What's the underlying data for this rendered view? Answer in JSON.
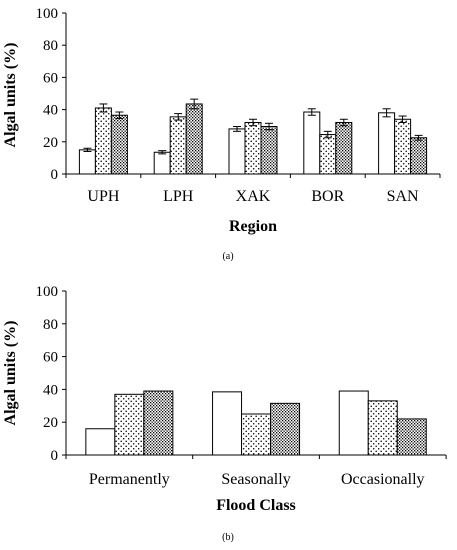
{
  "chart_data": [
    {
      "type": "bar",
      "caption": "(a)",
      "xlabel": "Region",
      "ylabel": "Algal units (%)",
      "ylim": [
        0,
        100
      ],
      "yticks": [
        0,
        20,
        40,
        60,
        80,
        100
      ],
      "categories": [
        "UPH",
        "LPH",
        "XAK",
        "BOR",
        "SAN"
      ],
      "grid": false,
      "legend": "none",
      "series": [
        {
          "pattern": "blank",
          "values": [
            15,
            13.5,
            28,
            38.5,
            38
          ],
          "errors": [
            1,
            1,
            1.5,
            2,
            2.5
          ]
        },
        {
          "pattern": "dotted",
          "values": [
            41,
            35.5,
            32,
            24.5,
            34
          ],
          "errors": [
            2.5,
            2,
            2,
            2,
            2
          ]
        },
        {
          "pattern": "dense-dotted",
          "values": [
            36.5,
            43.5,
            29.5,
            32,
            22.5
          ],
          "errors": [
            2,
            3,
            2,
            2,
            1.5
          ]
        }
      ]
    },
    {
      "type": "bar",
      "caption": "(b)",
      "xlabel": "Flood Class",
      "ylabel": "Algal units (%)",
      "ylim": [
        0,
        100
      ],
      "yticks": [
        0,
        20,
        40,
        60,
        80,
        100
      ],
      "categories": [
        "Permanently",
        "Seasonally",
        "Occasionally"
      ],
      "grid": false,
      "legend": "none",
      "series": [
        {
          "pattern": "blank",
          "values": [
            16,
            38.5,
            39
          ]
        },
        {
          "pattern": "dotted",
          "values": [
            37,
            25,
            33
          ]
        },
        {
          "pattern": "dense-dotted",
          "values": [
            39,
            31.5,
            22
          ]
        }
      ]
    }
  ]
}
